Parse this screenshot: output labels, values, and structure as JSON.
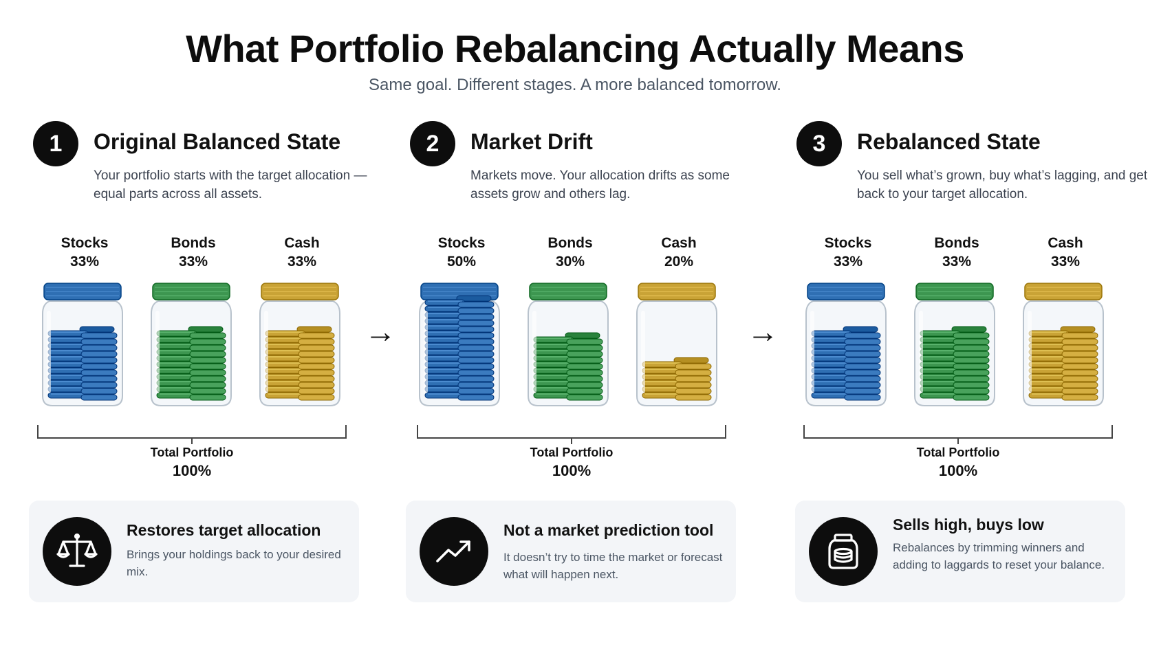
{
  "header": {
    "title": "What Portfolio Rebalancing Actually Means",
    "subtitle": "Same goal. Different stages. A more balanced tomorrow."
  },
  "colors": {
    "stocks": "#2f6fb3",
    "bonds": "#3d9650",
    "cash": "#c9a336",
    "dark": "#0d0d0d",
    "card_bg": "#f3f5f8"
  },
  "stages": [
    {
      "number": "1",
      "title": "Original Balanced State",
      "description": "Your portfolio starts with the target allocation — equal parts across all assets.",
      "jars": [
        {
          "name": "Stocks",
          "percent": "33%",
          "fill": 0.33
        },
        {
          "name": "Bonds",
          "percent": "33%",
          "fill": 0.33
        },
        {
          "name": "Cash",
          "percent": "33%",
          "fill": 0.33
        }
      ],
      "total_label": "Total Portfolio",
      "total_value": "100%"
    },
    {
      "number": "2",
      "title": "Market Drift",
      "description": "Markets move. Your allocation drifts as some assets grow and others lag.",
      "jars": [
        {
          "name": "Stocks",
          "percent": "50%",
          "fill": 0.5
        },
        {
          "name": "Bonds",
          "percent": "30%",
          "fill": 0.3
        },
        {
          "name": "Cash",
          "percent": "20%",
          "fill": 0.2
        }
      ],
      "total_label": "Total Portfolio",
      "total_value": "100%"
    },
    {
      "number": "3",
      "title": "Rebalanced State",
      "description": "You sell what’s grown, buy what’s lagging, and get back to your target allocation.",
      "jars": [
        {
          "name": "Stocks",
          "percent": "33%",
          "fill": 0.33
        },
        {
          "name": "Bonds",
          "percent": "33%",
          "fill": 0.33
        },
        {
          "name": "Cash",
          "percent": "33%",
          "fill": 0.33
        }
      ],
      "total_label": "Total Portfolio",
      "total_value": "100%"
    }
  ],
  "arrows": [
    "→",
    "→"
  ],
  "cards": [
    {
      "icon": "scale-icon",
      "title": "Restores target allocation",
      "description": "Brings your holdings back to your desired mix."
    },
    {
      "icon": "trend-up-icon",
      "title": "Not a market prediction tool",
      "description": "It doesn’t try to time the market or forecast what will happen next."
    },
    {
      "icon": "jar-icon",
      "title": "Sells high, buys low",
      "description": "Rebalances by trimming winners and adding to laggards to reset your balance."
    }
  ]
}
